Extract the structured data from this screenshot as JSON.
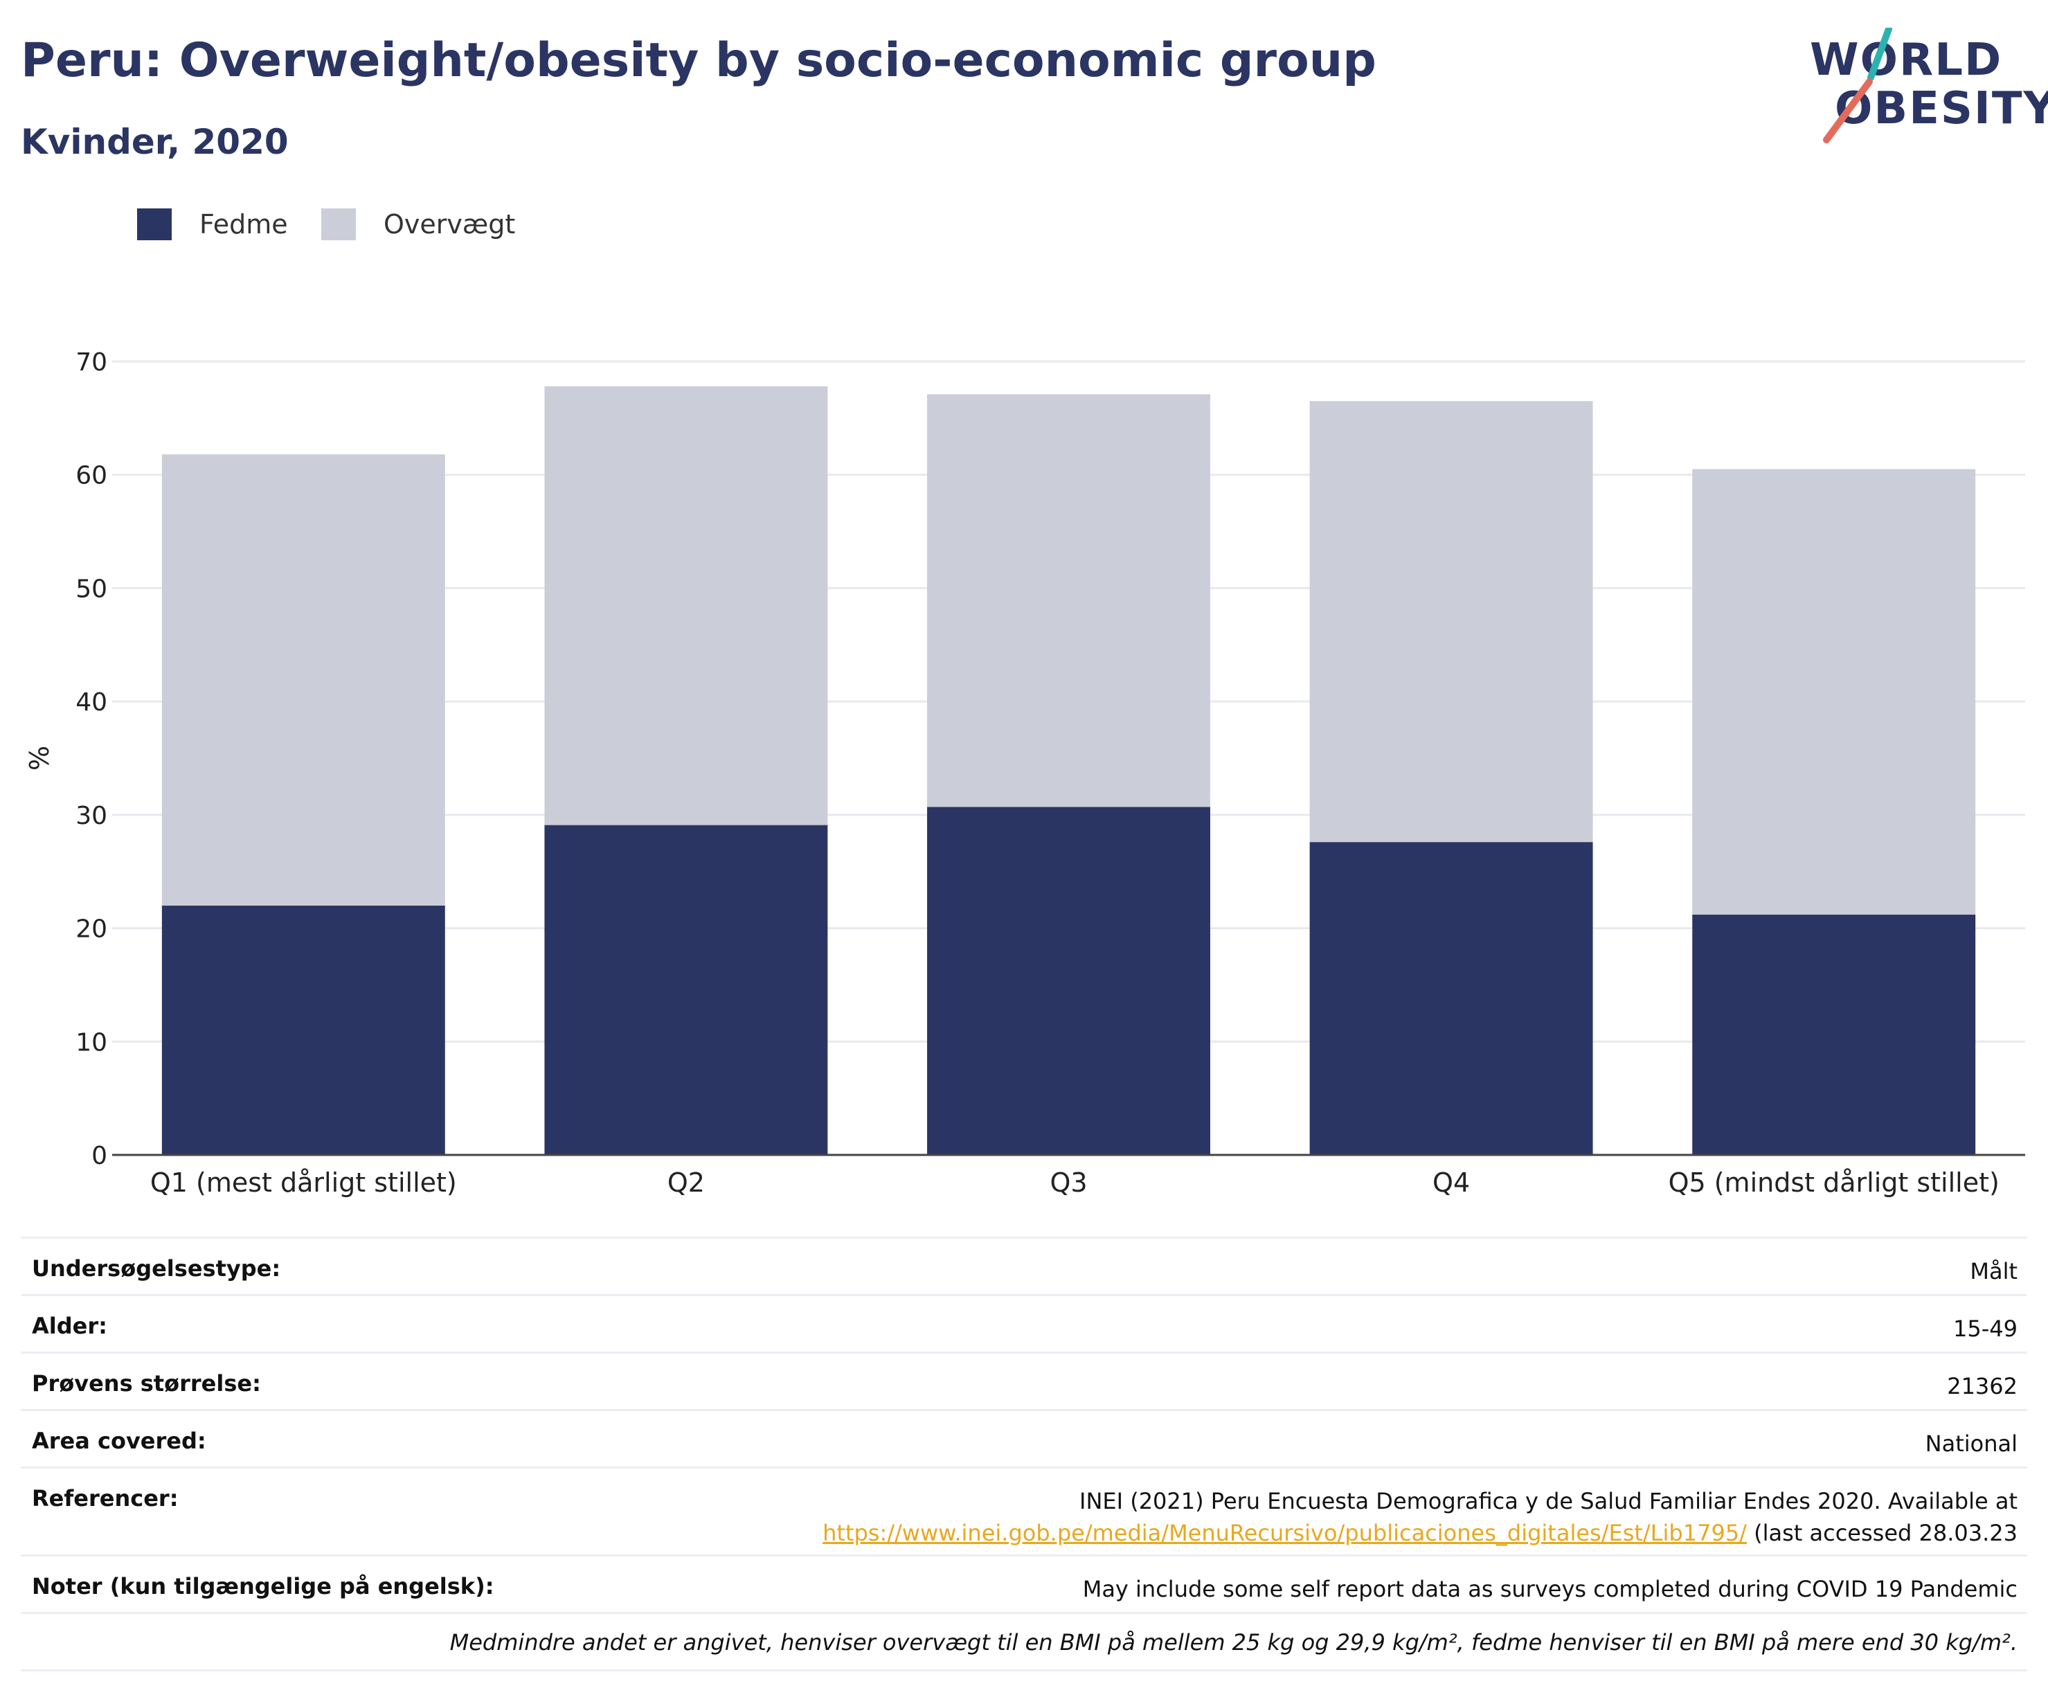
{
  "header": {
    "title": "Peru: Overweight/obesity by socio-economic group",
    "subtitle": "Kvinder, 2020",
    "logo_line1": "WORLD",
    "logo_line2": "OBESITY"
  },
  "colors": {
    "fedme": "#2b3563",
    "overvaegt": "#cbcdd8",
    "accent_teal": "#2ab3b1",
    "accent_coral": "#e46b5b",
    "link": "#e8a81e"
  },
  "chart_data": {
    "type": "bar",
    "stacked": true,
    "title": "",
    "xlabel": "",
    "ylabel": "%",
    "ylim": [
      0,
      70
    ],
    "yticks": [
      0,
      10,
      20,
      30,
      40,
      50,
      60,
      70
    ],
    "grid": true,
    "legend_position": "top-left",
    "categories": [
      "Q1 (mest dårligt stillet)",
      "Q2",
      "Q3",
      "Q4",
      "Q5 (mindst dårligt stillet)"
    ],
    "series": [
      {
        "name": "Fedme",
        "values": [
          22.0,
          29.1,
          30.7,
          27.6,
          21.2
        ]
      },
      {
        "name": "Overvægt",
        "values": [
          39.8,
          38.7,
          36.4,
          38.9,
          39.3
        ]
      }
    ]
  },
  "info": {
    "rows": [
      {
        "key": "Undersøgelsestype:",
        "value": "Målt"
      },
      {
        "key": "Alder:",
        "value": "15-49"
      },
      {
        "key": "Prøvens størrelse:",
        "value": "21362"
      },
      {
        "key": "Area covered:",
        "value": "National"
      },
      {
        "key": "Referencer:",
        "value": "INEI (2021) Peru Encuesta Demografica y de Salud Familiar Endes 2020. Available at",
        "link": "https://www.inei.gob.pe/media/MenuRecursivo/publicaciones_digitales/Est/Lib1795/",
        "value_tail": " (last accessed 28.03.23"
      },
      {
        "key": "Noter (kun tilgængelige på engelsk):",
        "value": "May include some self report data as surveys completed during COVID 19 Pandemic"
      }
    ],
    "footnote": "Medmindre andet er angivet, henviser overvægt til en BMI på mellem 25 kg og 29,9 kg/m², fedme henviser til en BMI på mere end 30 kg/m²."
  }
}
